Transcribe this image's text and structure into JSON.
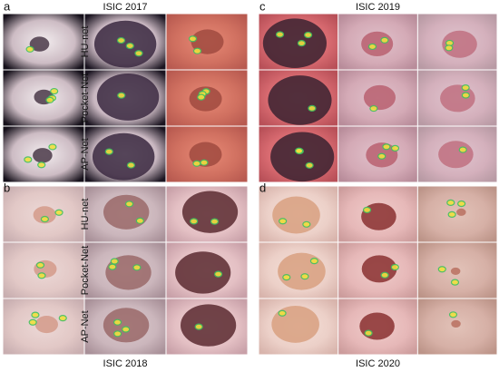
{
  "panels": [
    {
      "letter": "a",
      "title": "ISIC 2017",
      "row_labels": [
        "HU-net",
        "Pocket-Net",
        "AP-Net"
      ]
    },
    {
      "letter": "b",
      "title": "ISIC 2018",
      "row_labels": [
        "HU-net",
        "Pocket-Net",
        "AP-Net"
      ]
    },
    {
      "letter": "c",
      "title": "ISIC 2019"
    },
    {
      "letter": "d",
      "title": "ISIC 2020"
    }
  ]
}
